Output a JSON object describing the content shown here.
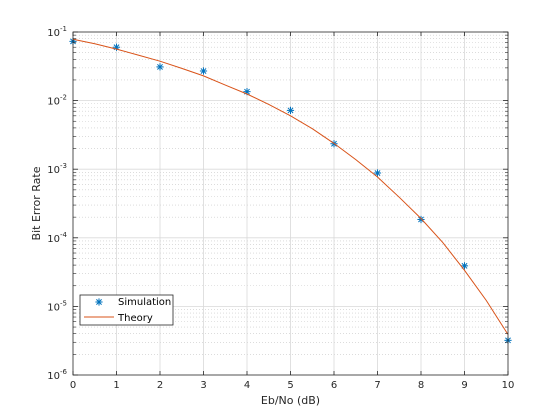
{
  "chart_data": {
    "type": "line",
    "xlabel": "Eb/No (dB)",
    "ylabel": "Bit Error Rate",
    "xlim": [
      0,
      10
    ],
    "ylim": [
      1e-06,
      0.1
    ],
    "yscale": "log",
    "grid": true,
    "minor_grid": true,
    "legend_position": "bottom-left",
    "x_ticks": [
      0,
      1,
      2,
      3,
      4,
      5,
      6,
      7,
      8,
      9,
      10
    ],
    "y_ticks": [
      {
        "value": 1e-06,
        "exp": "-6"
      },
      {
        "value": 1e-05,
        "exp": "-5"
      },
      {
        "value": 0.0001,
        "exp": "-4"
      },
      {
        "value": 0.001,
        "exp": "-3"
      },
      {
        "value": 0.01,
        "exp": "-2"
      },
      {
        "value": 0.1,
        "exp": "-1"
      }
    ],
    "series": [
      {
        "name": "Simulation",
        "style": "markers",
        "marker": "asterisk",
        "color": "#0072BD",
        "x": [
          0,
          1,
          2,
          3,
          4,
          5,
          6,
          7,
          8,
          9,
          10
        ],
        "y": [
          0.073,
          0.06,
          0.031,
          0.027,
          0.0135,
          0.0072,
          0.00235,
          0.00088,
          0.000185,
          3.9e-05,
          3.2e-06
        ]
      },
      {
        "name": "Theory",
        "style": "line",
        "color": "#D95319",
        "x": [
          0,
          0.5,
          1,
          1.5,
          2,
          2.5,
          3,
          3.5,
          4,
          4.5,
          5,
          5.5,
          6,
          6.5,
          7,
          7.5,
          8,
          8.5,
          9,
          9.5,
          10
        ],
        "y": [
          0.0786,
          0.0673,
          0.0563,
          0.046,
          0.0375,
          0.0295,
          0.0229,
          0.0168,
          0.0125,
          0.0088,
          0.006,
          0.0039,
          0.00238,
          0.00138,
          0.00077,
          0.00039,
          0.000191,
          8.5e-05,
          3.36e-05,
          1.22e-05,
          3.9e-06
        ]
      }
    ]
  }
}
